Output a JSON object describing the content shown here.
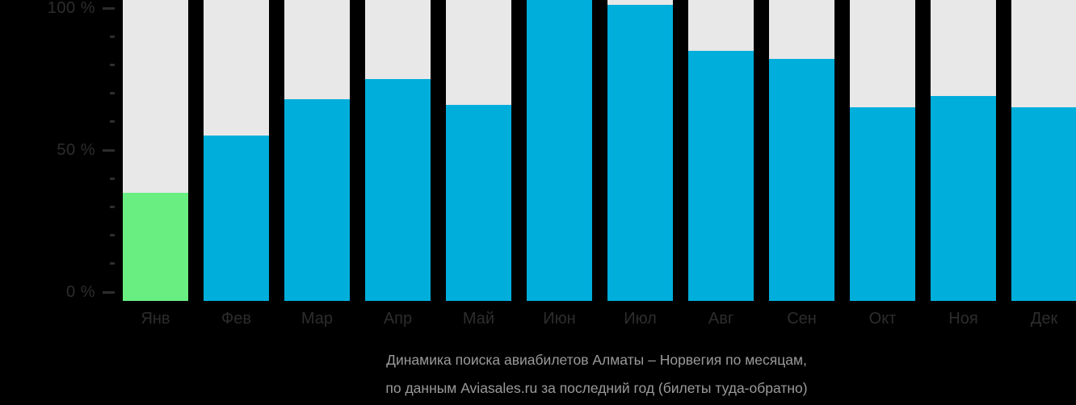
{
  "chart_data": {
    "type": "bar",
    "title": "",
    "xlabel": "",
    "ylabel": "",
    "categories": [
      "Янв",
      "Фев",
      "Мар",
      "Апр",
      "Май",
      "Июн",
      "Июл",
      "Авг",
      "Сен",
      "Окт",
      "Ноя",
      "Дек"
    ],
    "values": [
      35,
      55,
      68,
      75,
      66,
      103,
      101,
      85,
      82,
      65,
      69,
      65
    ],
    "value_unit": "%",
    "ylim": [
      0,
      103
    ],
    "y_axis": {
      "major_ticks": [
        {
          "value": 100,
          "label": "100 %"
        },
        {
          "value": 50,
          "label": "50 %"
        },
        {
          "value": 0,
          "label": "0 %"
        }
      ],
      "minor_tick_step_percent": 10
    },
    "grid": false,
    "legend": null,
    "highlighted_category": "Янв"
  },
  "colors": {
    "background": "#000000",
    "bar_track": "#e8e8e8",
    "bar_default": "#00aedb",
    "bar_highlight": "#69ee82",
    "axis_text": "#2d2d2d",
    "tick_mark": "#2d2d2d",
    "caption_text": "#9a9a9a"
  },
  "caption": {
    "line1": "Динамика поиска авиабилетов Алматы – Норвегия по месяцам,",
    "line2": "по данным Aviasales.ru за последний год (билеты туда-обратно)"
  }
}
